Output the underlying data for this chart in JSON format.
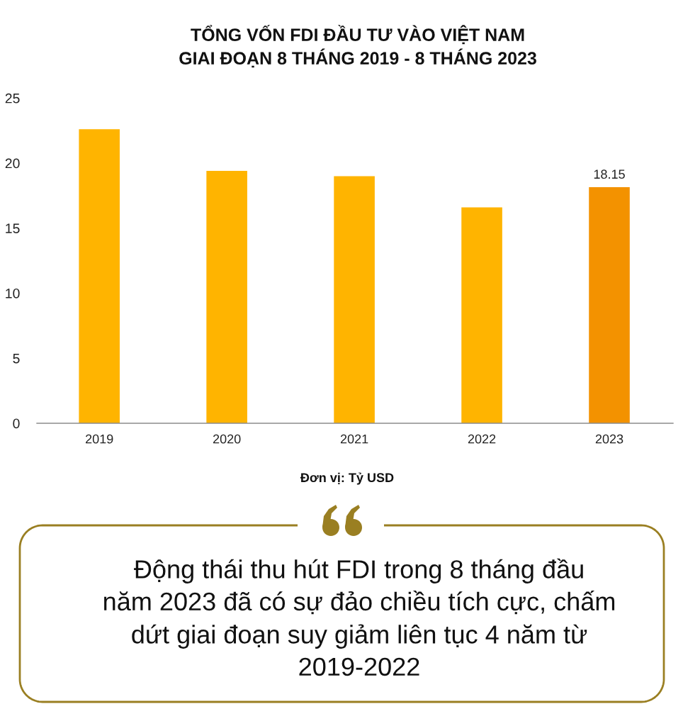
{
  "chart_data": {
    "type": "bar",
    "title": "TỔNG VỐN FDI ĐẦU TƯ VÀO VIỆT NAM\nGIAI ĐOẠN 8 THÁNG 2019 - 8 THÁNG 2023",
    "categories": [
      "2019",
      "2020",
      "2021",
      "2022",
      "2023"
    ],
    "values": [
      22.6,
      19.4,
      19.0,
      16.6,
      18.15
    ],
    "colors": [
      "#ffb400",
      "#ffb400",
      "#ffb400",
      "#ffb400",
      "#f39200"
    ],
    "ylim": [
      0,
      25
    ],
    "yticks": [
      0,
      5,
      10,
      15,
      20,
      25
    ],
    "value_labels": [
      null,
      null,
      null,
      null,
      "18.15"
    ],
    "annotations": [
      "Đơn vị: Tỷ USD",
      "Động thái thu hút FDI trong 8 tháng đầu\nnăm 2023 đã có sự đảo chiều tích cực, chấm\ndứt giai đoạn suy giảm liên tục 4 năm từ\n2019-2022"
    ]
  }
}
